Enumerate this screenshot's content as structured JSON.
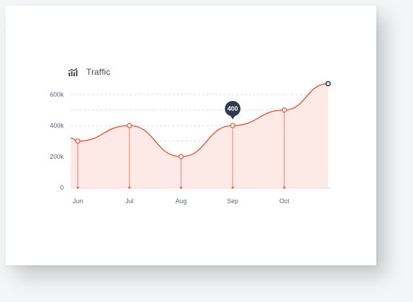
{
  "header": {
    "title": "Traffic",
    "icon": "bar-chart-trend-icon"
  },
  "colors": {
    "line": "#e8654a",
    "area": "#fdeae6",
    "grid": "#d9d9d9",
    "callout_bg": "#2f3a4b",
    "text": "#5c6673"
  },
  "chart_data": {
    "type": "area",
    "title": "Traffic",
    "xlabel": "",
    "ylabel": "",
    "categories": [
      "Jun",
      "Jul",
      "Aug",
      "Sep",
      "Oct"
    ],
    "series": [
      {
        "values": [
          300,
          400,
          200,
          400,
          500
        ],
        "start_value": 320,
        "end_value": 670
      }
    ],
    "y_ticks": [
      "0",
      "200k",
      "400k",
      "600k"
    ],
    "y_tick_values": [
      0,
      200,
      400,
      600
    ],
    "ylim": [
      0,
      650
    ],
    "grid": "horizontal dashed",
    "highlight": {
      "category": "Sep",
      "label": "400"
    },
    "legend": "none"
  }
}
